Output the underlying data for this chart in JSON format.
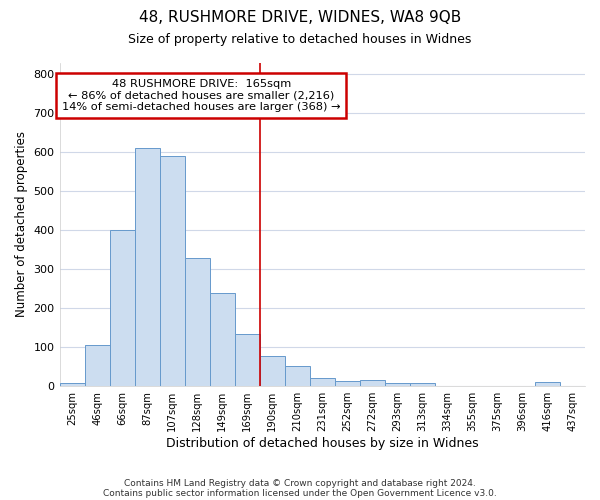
{
  "title": "48, RUSHMORE DRIVE, WIDNES, WA8 9QB",
  "subtitle": "Size of property relative to detached houses in Widnes",
  "xlabel": "Distribution of detached houses by size in Widnes",
  "ylabel": "Number of detached properties",
  "bin_labels": [
    "25sqm",
    "46sqm",
    "66sqm",
    "87sqm",
    "107sqm",
    "128sqm",
    "149sqm",
    "169sqm",
    "190sqm",
    "210sqm",
    "231sqm",
    "252sqm",
    "272sqm",
    "293sqm",
    "313sqm",
    "334sqm",
    "355sqm",
    "375sqm",
    "396sqm",
    "416sqm",
    "437sqm"
  ],
  "bar_heights": [
    8,
    105,
    400,
    610,
    590,
    330,
    238,
    135,
    77,
    52,
    22,
    14,
    15,
    8,
    7,
    0,
    0,
    0,
    0,
    10,
    0
  ],
  "bar_color": "#ccddf0",
  "bar_edge_color": "#6699cc",
  "property_line_x": 7.5,
  "annotation_text": "48 RUSHMORE DRIVE:  165sqm\n← 86% of detached houses are smaller (2,216)\n14% of semi-detached houses are larger (368) →",
  "annotation_box_color": "#ffffff",
  "annotation_box_edge_color": "#cc0000",
  "ylim": [
    0,
    830
  ],
  "yticks": [
    0,
    100,
    200,
    300,
    400,
    500,
    600,
    700,
    800
  ],
  "background_color": "#ffffff",
  "grid_color": "#d0d8e8",
  "footer_line1": "Contains HM Land Registry data © Crown copyright and database right 2024.",
  "footer_line2": "Contains public sector information licensed under the Open Government Licence v3.0."
}
